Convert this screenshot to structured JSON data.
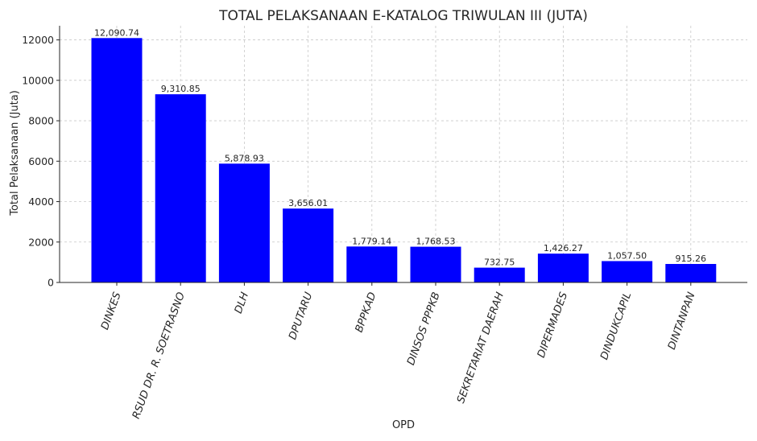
{
  "chart_data": {
    "type": "bar",
    "title": "TOTAL PELAKSANAAN E-KATALOG TRIWULAN III (JUTA)",
    "xlabel": "OPD",
    "ylabel": "Total Pelaksanaan (Juta)",
    "categories": [
      "DINKES",
      "RSUD DR. R. SOETRASNO",
      "DLH",
      "DPUTARU",
      "BPPKAD",
      "DINSOS PPPKB",
      "SEKRETARIAT DAERAH",
      "DIPERMADES",
      "DINDUKCAPIL",
      "DINTANPAN"
    ],
    "values": [
      12090.74,
      9310.85,
      5878.93,
      3656.01,
      1779.14,
      1768.53,
      732.75,
      1426.27,
      1057.5,
      915.26
    ],
    "value_labels": [
      "12,090.74",
      "9,310.85",
      "5,878.93",
      "3,656.01",
      "1,779.14",
      "1,768.53",
      "732.75",
      "1,426.27",
      "1,057.50",
      "915.26"
    ],
    "yticks": [
      "0",
      "2000",
      "4000",
      "6000",
      "8000",
      "10000",
      "12000"
    ],
    "ylim": [
      0,
      12700
    ],
    "grid": true,
    "bar_color": "#0000ff"
  }
}
